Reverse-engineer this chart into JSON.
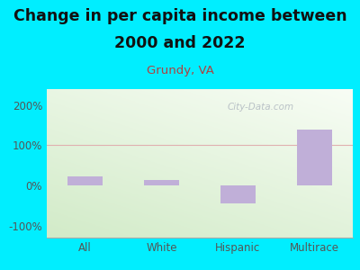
{
  "title_line1": "Change in per capita income between",
  "title_line2": "2000 and 2022",
  "subtitle": "Grundy, VA",
  "categories": [
    "All",
    "White",
    "Hispanic",
    "Multirace"
  ],
  "values": [
    22,
    13,
    -45,
    138
  ],
  "bar_color": "#c0afd8",
  "background_outer": "#00eeff",
  "background_plot_gradient_top": "#f8fdf5",
  "background_plot_gradient_bottom": "#d8efd0",
  "title_fontsize": 12.5,
  "subtitle_fontsize": 9.5,
  "subtitle_color": "#b04040",
  "title_color": "#111111",
  "tick_color": "#555555",
  "ylabel_ticks": [
    "-100%",
    "0%",
    "100%",
    "200%"
  ],
  "yticks": [
    -100,
    0,
    100,
    200
  ],
  "ylim": [
    -130,
    240
  ],
  "watermark": "City-Data.com",
  "grid100_color": "#e0b0b0",
  "bar_width": 0.45,
  "bottom_line_color": "#aaaaaa"
}
